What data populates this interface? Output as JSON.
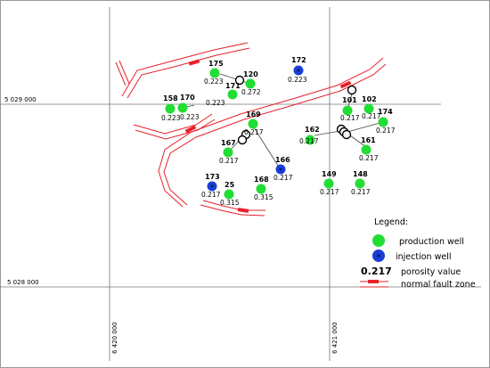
{
  "coordinates": {
    "north_a": "5 029 000",
    "north_b": "5 028 000",
    "east_a": "6 420 000",
    "east_b": "6 421 000"
  },
  "colors": {
    "production": "#22dd33",
    "injection": "#1a3fd8",
    "fault": "#e8202a",
    "grid": "#777777"
  },
  "legend": {
    "title": "Legend:",
    "production_label": "production well",
    "injection_label": "injection well",
    "porosity_sample": "0.217",
    "porosity_label": "porosity value",
    "fault_label": "normal fault zone"
  },
  "wells": [
    {
      "id": "175",
      "porosity": "0.223",
      "type": "production"
    },
    {
      "id": "120",
      "porosity": "0.272",
      "type": "production"
    },
    {
      "id": "171",
      "porosity": "0.223",
      "type": "production"
    },
    {
      "id": "172",
      "porosity": "0.223",
      "type": "injection"
    },
    {
      "id": "158",
      "porosity": "0.223",
      "type": "production"
    },
    {
      "id": "170",
      "porosity": "0.223",
      "type": "production"
    },
    {
      "id": "169",
      "porosity": "0.217",
      "type": "production"
    },
    {
      "id": "167",
      "porosity": "0.217",
      "type": "production"
    },
    {
      "id": "166",
      "porosity": "0.217",
      "type": "injection"
    },
    {
      "id": "173",
      "porosity": "0.217",
      "type": "injection"
    },
    {
      "id": "25",
      "porosity": "0.315",
      "type": "production"
    },
    {
      "id": "168",
      "porosity": "0.315",
      "type": "production"
    },
    {
      "id": "101",
      "porosity": "0.217",
      "type": "production"
    },
    {
      "id": "102",
      "porosity": "0.217",
      "type": "production"
    },
    {
      "id": "174",
      "porosity": "0.217",
      "type": "production"
    },
    {
      "id": "162",
      "porosity": "0.217",
      "type": "production"
    },
    {
      "id": "161",
      "porosity": "0.217",
      "type": "production"
    },
    {
      "id": "149",
      "porosity": "0.217",
      "type": "production"
    },
    {
      "id": "148",
      "porosity": "0.217",
      "type": "production"
    }
  ]
}
